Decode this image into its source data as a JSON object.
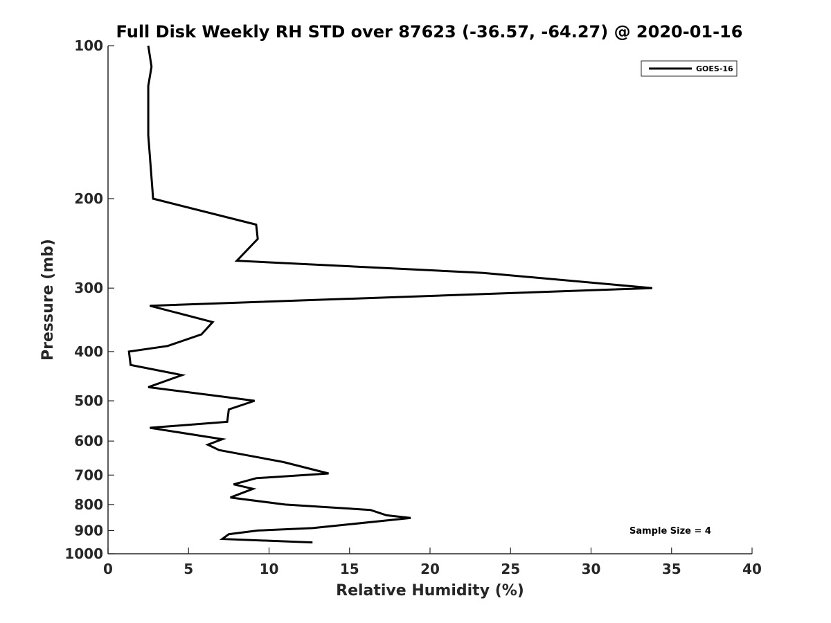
{
  "chart_data": {
    "type": "line",
    "title": "Full Disk Weekly RH STD over 87623 (-36.57, -64.27) @ 2020-01-16",
    "xlabel": "Relative Humidity (%)",
    "ylabel": "Pressure (mb)",
    "xlim": [
      0,
      40
    ],
    "ylim": [
      100,
      1000
    ],
    "y_scale": "log",
    "y_reversed": true,
    "x_ticks": [
      0,
      5,
      10,
      15,
      20,
      25,
      30,
      35,
      40
    ],
    "y_ticks": [
      100,
      200,
      300,
      400,
      500,
      600,
      700,
      800,
      900,
      1000
    ],
    "grid": false,
    "legend_position": "top-right",
    "annotation": "Sample Size = 4",
    "series": [
      {
        "name": "GOES-16",
        "color": "#000000",
        "x": [
          2.5,
          2.7,
          2.5,
          2.5,
          2.5,
          2.5,
          2.8,
          9.2,
          9.3,
          8.0,
          23.3,
          33.8,
          2.6,
          6.5,
          5.8,
          3.7,
          1.3,
          1.4,
          4.6,
          2.5,
          7.0,
          9.1,
          7.5,
          7.4,
          2.6,
          7.1,
          6.2,
          6.9,
          10.9,
          13.7,
          9.2,
          7.8,
          9.0,
          7.6,
          11.0,
          16.3,
          17.3,
          18.8,
          17.3,
          15.0,
          12.7,
          9.3,
          7.5,
          7.1,
          12.7
        ],
        "y": [
          100,
          110,
          120,
          130,
          140,
          150,
          200,
          225,
          240,
          265,
          280,
          300,
          325,
          350,
          370,
          390,
          400,
          425,
          445,
          470,
          490,
          500,
          520,
          550,
          565,
          595,
          610,
          625,
          660,
          695,
          710,
          730,
          745,
          775,
          800,
          820,
          840,
          850,
          860,
          875,
          890,
          900,
          915,
          935,
          950
        ]
      }
    ]
  }
}
